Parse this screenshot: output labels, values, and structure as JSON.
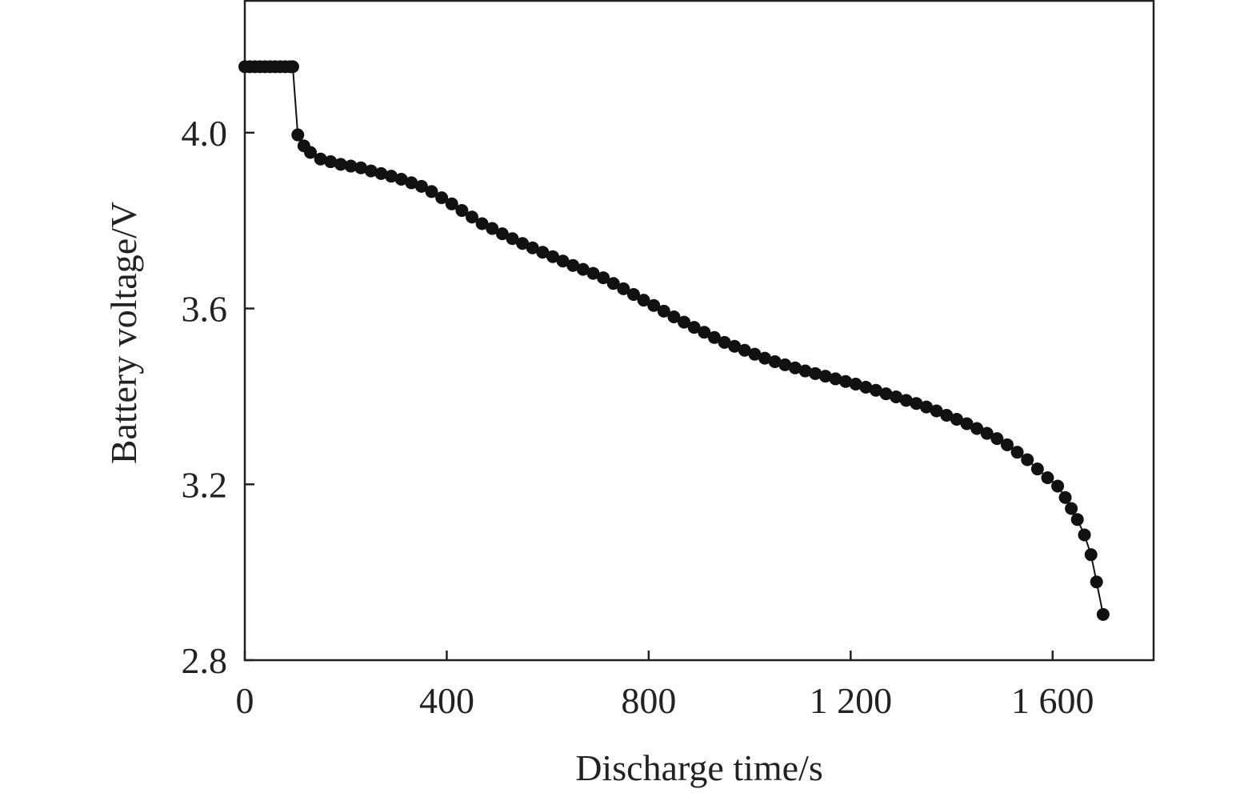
{
  "chart_data": {
    "type": "line",
    "x_label": "Discharge time/s",
    "y_label": "Battery voltage/V",
    "x": [
      0,
      10,
      20,
      30,
      40,
      50,
      60,
      70,
      80,
      90,
      95,
      105,
      117,
      130,
      150,
      170,
      190,
      210,
      230,
      250,
      270,
      290,
      310,
      330,
      350,
      370,
      390,
      410,
      430,
      450,
      470,
      490,
      510,
      530,
      550,
      570,
      590,
      610,
      630,
      650,
      670,
      690,
      710,
      730,
      750,
      770,
      790,
      810,
      830,
      850,
      870,
      890,
      910,
      930,
      950,
      970,
      990,
      1010,
      1030,
      1050,
      1070,
      1090,
      1110,
      1130,
      1150,
      1170,
      1190,
      1210,
      1230,
      1250,
      1270,
      1290,
      1310,
      1330,
      1350,
      1370,
      1390,
      1410,
      1430,
      1450,
      1470,
      1490,
      1510,
      1530,
      1550,
      1570,
      1590,
      1610,
      1625,
      1637,
      1649,
      1663,
      1676,
      1687,
      1700
    ],
    "series": [
      {
        "color": "#111111",
        "values": [
          4.15,
          4.15,
          4.15,
          4.15,
          4.15,
          4.15,
          4.15,
          4.15,
          4.15,
          4.15,
          4.15,
          3.995,
          3.97,
          3.955,
          3.94,
          3.934,
          3.928,
          3.924,
          3.92,
          3.913,
          3.907,
          3.901,
          3.894,
          3.886,
          3.878,
          3.866,
          3.852,
          3.838,
          3.823,
          3.808,
          3.793,
          3.782,
          3.77,
          3.759,
          3.748,
          3.738,
          3.728,
          3.718,
          3.708,
          3.698,
          3.689,
          3.68,
          3.67,
          3.657,
          3.645,
          3.632,
          3.619,
          3.607,
          3.594,
          3.581,
          3.569,
          3.557,
          3.546,
          3.534,
          3.523,
          3.514,
          3.505,
          3.496,
          3.487,
          3.479,
          3.472,
          3.465,
          3.458,
          3.452,
          3.446,
          3.44,
          3.434,
          3.428,
          3.421,
          3.414,
          3.406,
          3.399,
          3.391,
          3.384,
          3.376,
          3.367,
          3.357,
          3.348,
          3.338,
          3.327,
          3.316,
          3.304,
          3.29,
          3.273,
          3.256,
          3.235,
          3.215,
          3.196,
          3.17,
          3.145,
          3.12,
          3.085,
          3.04,
          2.978,
          2.904
        ]
      }
    ],
    "xlim": [
      0,
      1800
    ],
    "xticks": [
      0,
      400,
      800,
      {
        "value": 1200,
        "label": "1 200"
      },
      {
        "value": 1600,
        "label": "1 600"
      }
    ],
    "ylim": [
      2.8,
      4.3
    ],
    "yticks": [
      2.8,
      3.2,
      3.6,
      {
        "value": 4,
        "label": "4.0"
      }
    ],
    "markers": true
  }
}
